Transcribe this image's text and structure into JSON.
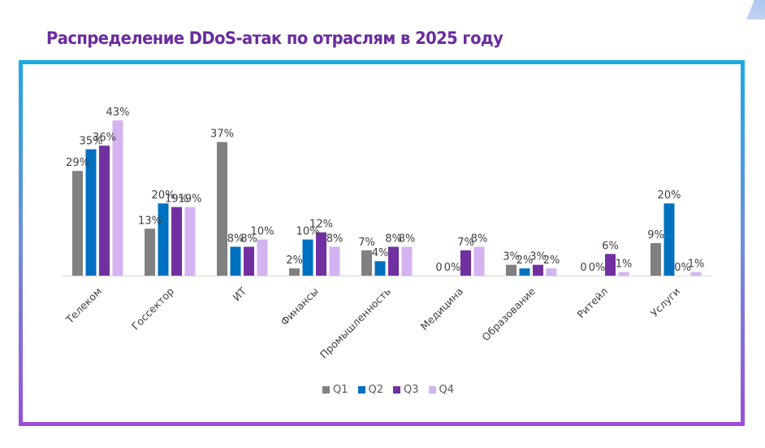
{
  "title": "Распределение DDoS-атак по отраслям в 2025 году",
  "chart_data": {
    "type": "bar",
    "title": "Распределение DDoS-атак по отраслям в 2025 году",
    "xlabel": "",
    "ylabel": "",
    "ylim": [
      0,
      45
    ],
    "grid": false,
    "legend_position": "bottom",
    "categories": [
      "Телеком",
      "Госсектор",
      "ИТ",
      "Финансы",
      "Промышленность",
      "Медицина",
      "Образование",
      "Ритейл",
      "Услуги"
    ],
    "series": [
      {
        "name": "Q1",
        "color": "#808080",
        "values": [
          29,
          13,
          37,
          2,
          7,
          0,
          3,
          0,
          9
        ],
        "labels": [
          "29%",
          "13%",
          "37%",
          "2%",
          "7%",
          "0",
          "3%",
          "0",
          "9%"
        ]
      },
      {
        "name": "Q2",
        "color": "#0070c0",
        "values": [
          35,
          20,
          8,
          10,
          4,
          0,
          2,
          0,
          20
        ],
        "labels": [
          "35%",
          "20%",
          "8%",
          "10%",
          "4%",
          "0%",
          "2%",
          "0%",
          "20%"
        ]
      },
      {
        "name": "Q3",
        "color": "#7030a0",
        "values": [
          36,
          19,
          8,
          12,
          8,
          7,
          3,
          6,
          0
        ],
        "labels": [
          "36%",
          "19%",
          "8%",
          "12%",
          "8%",
          "7%",
          "3%",
          "6%",
          "0%"
        ]
      },
      {
        "name": "Q4",
        "color": "#d5b3f0",
        "values": [
          43,
          19,
          10,
          8,
          8,
          8,
          2,
          1,
          1
        ],
        "labels": [
          "43%",
          "19%",
          "10%",
          "8%",
          "8%",
          "8%",
          "2%",
          "1%",
          "1%"
        ]
      }
    ]
  },
  "legend": [
    {
      "label": "Q1",
      "color": "#808080"
    },
    {
      "label": "Q2",
      "color": "#0070c0"
    },
    {
      "label": "Q3",
      "color": "#7030a0"
    },
    {
      "label": "Q4",
      "color": "#d5b3f0"
    }
  ]
}
